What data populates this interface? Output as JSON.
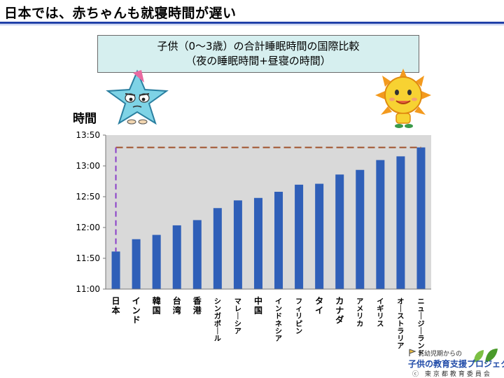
{
  "slide": {
    "title": "日本では、赤ちゃんも就寝時間が遅い"
  },
  "chart_box": {
    "line1": "子供（0〜3歳）の合計睡眠時間の国際比較",
    "line2": "（夜の睡眠時間+昼寝の時間）"
  },
  "logo": {
    "line1": "乳幼児期からの",
    "line2": "子供の教育支援プロジェクト",
    "line3": "ⓒ 東京都教育委員会"
  },
  "colors": {
    "bar": "#2f5fb8",
    "plot_bg": "#d9d9d9",
    "reference_line": "#a0522d",
    "reference_vertical": "#8a3fc8"
  },
  "chart_data": {
    "type": "bar",
    "ylabel": "時間",
    "y_tick_labels": [
      "11:00",
      "11:50",
      "12:00",
      "12:50",
      "13:00",
      "13:50"
    ],
    "ylim": [
      0,
      5
    ],
    "categories": [
      "日本",
      "インド",
      "韓国",
      "台湾",
      "香港",
      "シンガポール",
      "マレーシア",
      "中国",
      "インドネシア",
      "フィリピン",
      "タイ",
      "カナダ",
      "アメリカ",
      "イギリス",
      "オーストラリア",
      "ニュージーランド"
    ],
    "values": [
      1.22,
      1.62,
      1.76,
      2.07,
      2.24,
      2.63,
      2.88,
      2.96,
      3.16,
      3.39,
      3.42,
      3.72,
      3.87,
      4.19,
      4.31,
      4.6
    ],
    "reference_line": {
      "from_category": "日本",
      "to_category": "ニュージーランド",
      "value": 4.6
    },
    "grid": false,
    "legend": "none"
  }
}
